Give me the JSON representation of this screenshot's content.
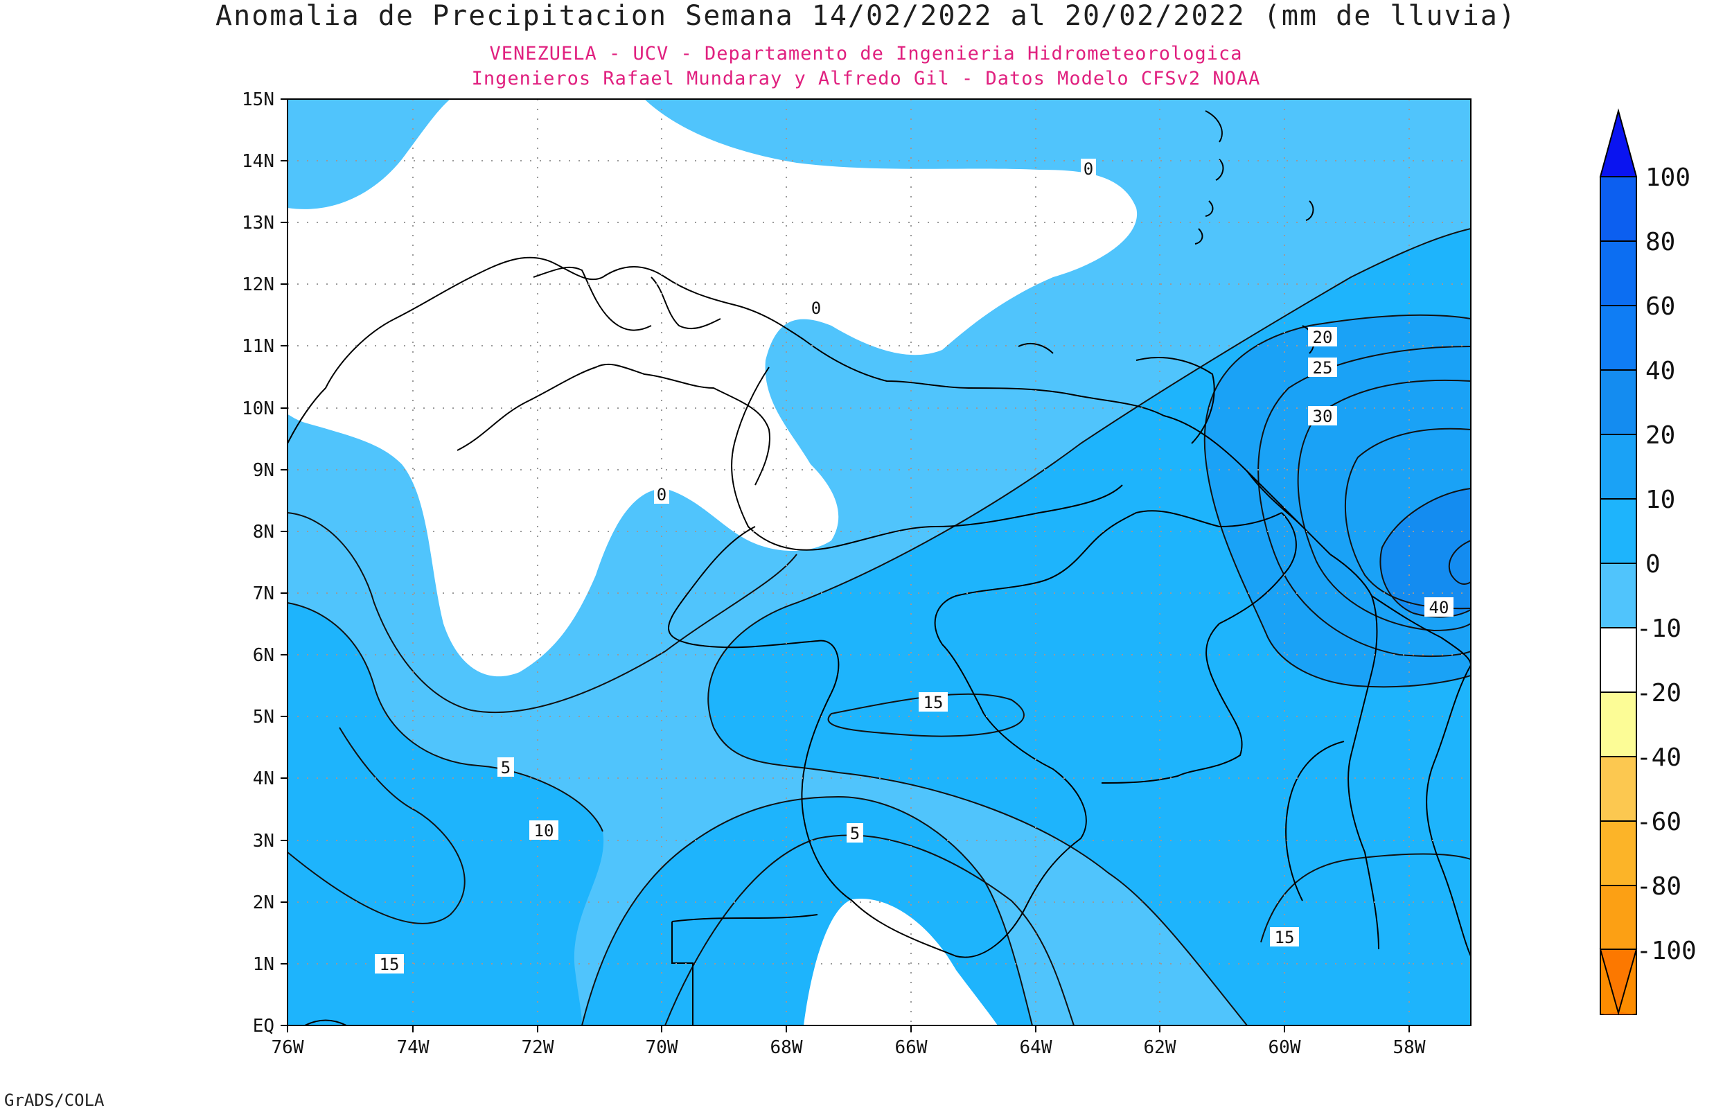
{
  "title": "Anomalia de Precipitacion Semana 14/02/2022 al 20/02/2022 (mm de lluvia)",
  "subtitle_1": "VENEZUELA - UCV - Departamento de Ingenieria Hidrometeorologica",
  "subtitle_2": "Ingenieros Rafael Mundaray y Alfredo Gil - Datos Modelo CFSv2 NOAA",
  "credit": "GrADS/COLA",
  "colors": {
    "c0": "#50c4fc",
    "c10": "#1eb4fc",
    "c20": "#1aa2f6",
    "c40": "#148cf0",
    "neutral": "#ffffff",
    "line": "#111111"
  },
  "map": {
    "lon_min": -76,
    "lon_max": -57,
    "lat_min": 0,
    "lat_max": 15,
    "lon_ticks": [
      "76W",
      "74W",
      "72W",
      "70W",
      "68W",
      "66W",
      "64W",
      "62W",
      "60W",
      "58W"
    ],
    "lat_ticks": [
      "EQ",
      "1N",
      "2N",
      "3N",
      "4N",
      "5N",
      "6N",
      "7N",
      "8N",
      "9N",
      "10N",
      "11N",
      "12N",
      "13N",
      "14N",
      "15N"
    ],
    "contour_labels": [
      "0",
      "0",
      "0",
      "5",
      "5",
      "10",
      "15",
      "15",
      "15",
      "20",
      "25",
      "30",
      "40"
    ]
  },
  "colorbar": {
    "labels": [
      "100",
      "80",
      "60",
      "40",
      "20",
      "10",
      "0",
      "-10",
      "-20",
      "-40",
      "-60",
      "-80",
      "-100"
    ],
    "colors": [
      "#0a14f0",
      "#0c5ff0",
      "#0c6ef2",
      "#0f7df4",
      "#148cf0",
      "#1aa2f6",
      "#1eb4fc",
      "#50c4fc",
      "#ffffff",
      "#fcfc96",
      "#fcc850",
      "#fcb428",
      "#fca014",
      "#fc8c00",
      "#fc7800"
    ]
  }
}
